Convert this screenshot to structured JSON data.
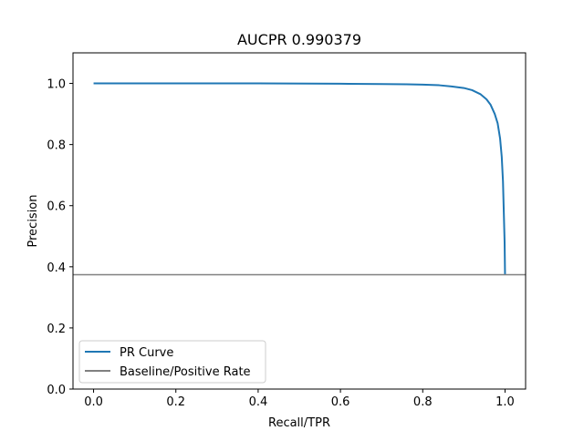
{
  "chart_data": {
    "type": "line",
    "title": "AUCPR 0.990379",
    "xlabel": "Recall/TPR",
    "ylabel": "Precision",
    "xlim": [
      -0.05,
      1.05
    ],
    "ylim": [
      0.0,
      1.1
    ],
    "xticks": [
      "0.0",
      "0.2",
      "0.4",
      "0.6",
      "0.8",
      "1.0"
    ],
    "yticks": [
      "0.0",
      "0.2",
      "0.4",
      "0.6",
      "0.8",
      "1.0"
    ],
    "legend_position": "lower-left",
    "grid": false,
    "series": [
      {
        "name": "PR Curve",
        "color": "#1f77b4",
        "points": [
          [
            0.0,
            1.0
          ],
          [
            0.2,
            1.0
          ],
          [
            0.4,
            1.0
          ],
          [
            0.6,
            0.999
          ],
          [
            0.7,
            0.998
          ],
          [
            0.76,
            0.997
          ],
          [
            0.8,
            0.996
          ],
          [
            0.84,
            0.994
          ],
          [
            0.87,
            0.99
          ],
          [
            0.9,
            0.985
          ],
          [
            0.92,
            0.978
          ],
          [
            0.94,
            0.965
          ],
          [
            0.955,
            0.948
          ],
          [
            0.965,
            0.93
          ],
          [
            0.975,
            0.9
          ],
          [
            0.982,
            0.87
          ],
          [
            0.988,
            0.82
          ],
          [
            0.992,
            0.76
          ],
          [
            0.995,
            0.68
          ],
          [
            0.997,
            0.58
          ],
          [
            0.999,
            0.48
          ],
          [
            1.0,
            0.376
          ]
        ]
      },
      {
        "name": "Baseline/Positive Rate",
        "color": "#808080",
        "y": 0.374
      }
    ]
  }
}
